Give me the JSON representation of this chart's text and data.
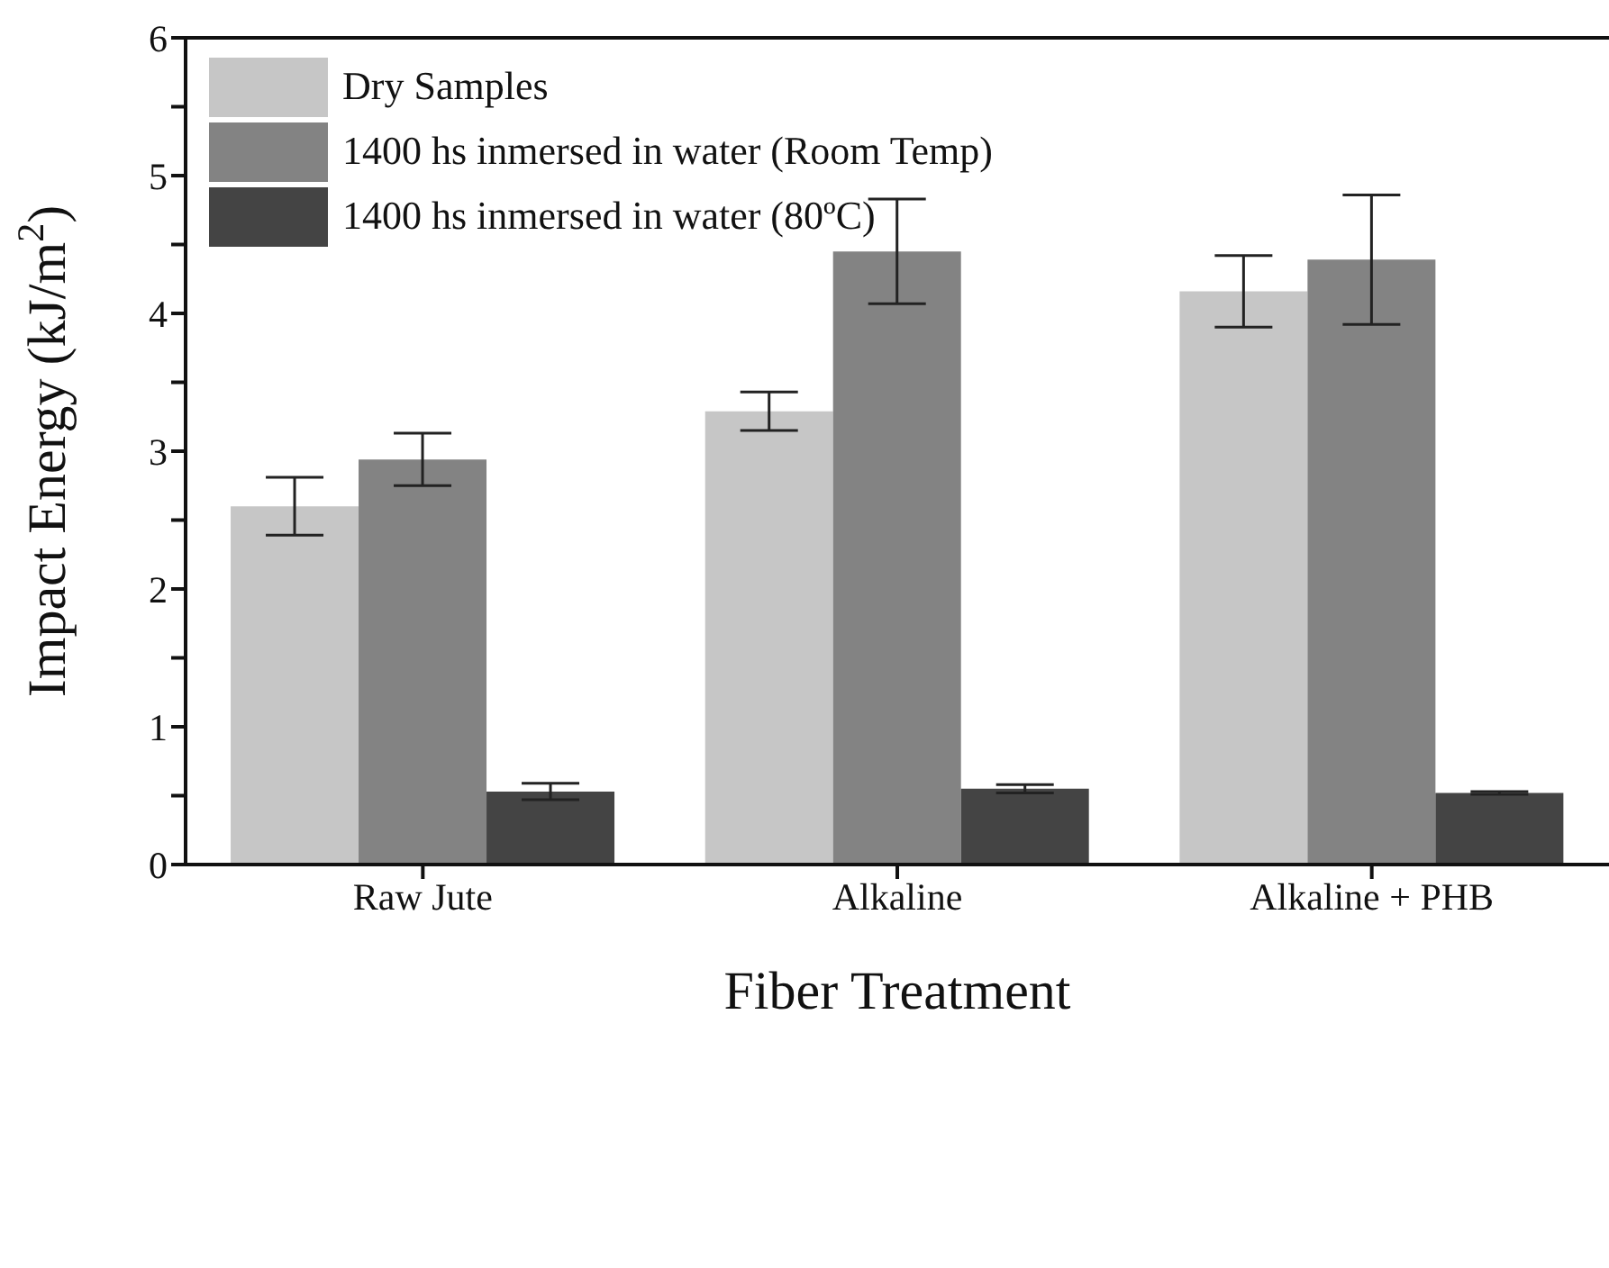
{
  "chart_data": {
    "type": "bar",
    "xlabel": "Fiber Treatment",
    "ylabel": "Impact Energy (kJ/m$^{2}$)",
    "categories": [
      "Raw Jute",
      "Alkaline",
      "Alkaline + PHB"
    ],
    "series": [
      {
        "name": "Dry Samples",
        "color": "#c6c6c6",
        "values": [
          2.6,
          3.29,
          4.16
        ],
        "errors": [
          0.21,
          0.14,
          0.26
        ]
      },
      {
        "name": "1400 hs inmersed in water (Room Temp)",
        "color": "#838383",
        "values": [
          2.94,
          4.45,
          4.39
        ],
        "errors": [
          0.19,
          0.38,
          0.47
        ]
      },
      {
        "name": "1400 hs inmersed in water (80ºC)",
        "color": "#444444",
        "values": [
          0.53,
          0.55,
          0.52
        ],
        "errors": [
          0.06,
          0.03,
          0.01
        ]
      }
    ],
    "ylim": [
      0,
      6
    ],
    "yticks": [
      0,
      {
        "value": 0.5,
        "label": null
      },
      1,
      {
        "value": 1.5,
        "label": null
      },
      2,
      {
        "value": 2.5,
        "label": null
      },
      3,
      {
        "value": 3.5,
        "label": null
      },
      4,
      {
        "value": 4.5,
        "label": null
      },
      5,
      {
        "value": 5.5,
        "label": null
      },
      6
    ],
    "legend": "top left",
    "grid": false
  }
}
